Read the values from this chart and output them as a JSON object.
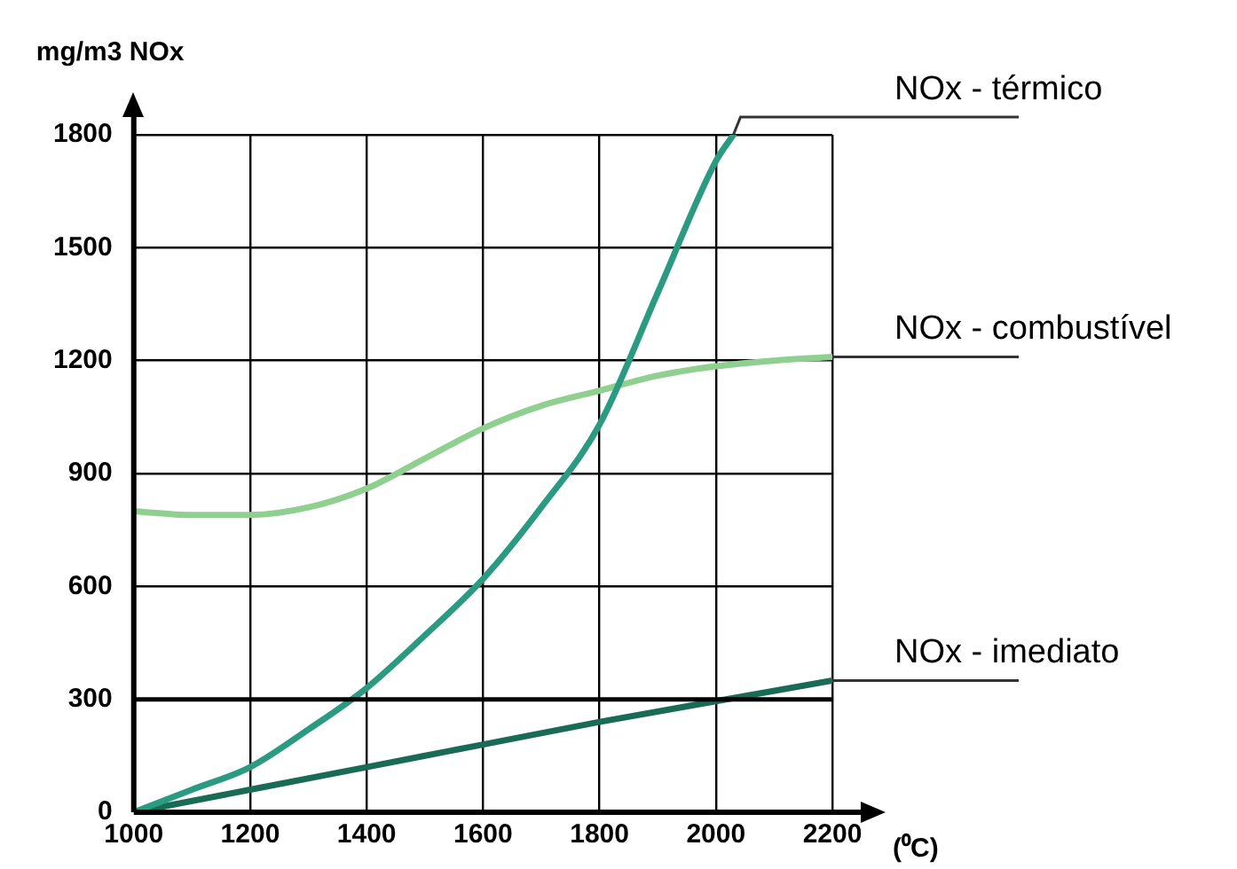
{
  "chart_data": {
    "type": "line",
    "xlabel": "(⁰C)",
    "ylabel": "mg/m3 NOx",
    "xlim": [
      1000,
      2200
    ],
    "xticks": [
      1000,
      1200,
      1400,
      1600,
      1800,
      2000,
      2200
    ],
    "ylim": [
      0,
      1800
    ],
    "yticks": [
      0,
      300,
      600,
      900,
      1200,
      1500,
      1800
    ],
    "grid": true,
    "legend": false,
    "marker": "none",
    "line_style": "solid",
    "ref_lines": [
      {
        "axis": "y",
        "value": 300,
        "color": "#000000"
      }
    ],
    "series": [
      {
        "name": "NOx - térmico",
        "color": "#2a9a80",
        "x": [
          1000,
          1100,
          1200,
          1300,
          1400,
          1500,
          1600,
          1700,
          1800,
          1900,
          2000,
          2030
        ],
        "values": [
          0,
          60,
          120,
          220,
          330,
          470,
          620,
          810,
          1030,
          1380,
          1730,
          1800
        ]
      },
      {
        "name": "NOx - combustível",
        "color": "#8fcf8f",
        "x": [
          1000,
          1100,
          1200,
          1300,
          1400,
          1500,
          1600,
          1700,
          1800,
          1900,
          2000,
          2100,
          2200
        ],
        "values": [
          800,
          790,
          790,
          810,
          860,
          940,
          1020,
          1080,
          1120,
          1160,
          1185,
          1200,
          1210
        ]
      },
      {
        "name": "NOx - imediato",
        "color": "#1a6b55",
        "x": [
          1000,
          1200,
          1400,
          1600,
          1800,
          2000,
          2200
        ],
        "values": [
          0,
          60,
          120,
          180,
          240,
          295,
          350
        ]
      }
    ]
  }
}
